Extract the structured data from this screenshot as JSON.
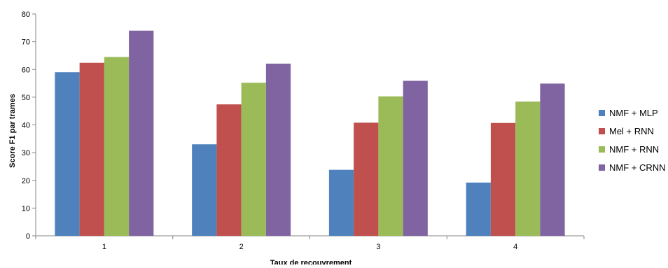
{
  "chart_data": {
    "type": "bar",
    "categories": [
      "1",
      "2",
      "3",
      "4"
    ],
    "series": [
      {
        "name": "NMF + MLP",
        "values": [
          59.0,
          33.0,
          23.8,
          19.2
        ],
        "color": "#4F81BD"
      },
      {
        "name": "Mel + RNN",
        "values": [
          62.4,
          47.4,
          40.8,
          40.7
        ],
        "color": "#C0504D"
      },
      {
        "name": "NMF + RNN",
        "values": [
          64.5,
          55.2,
          50.3,
          48.4
        ],
        "color": "#9BBB59"
      },
      {
        "name": "NMF + CRNN",
        "values": [
          74.0,
          62.1,
          55.9,
          54.9
        ],
        "color": "#8064A2"
      }
    ],
    "title": "",
    "xlabel": "Taux de recouvrement",
    "ylabel": "Score F1 par trames",
    "ylim": [
      0,
      80
    ],
    "yticks": [
      0,
      10,
      20,
      30,
      40,
      50,
      60,
      70,
      80
    ],
    "grid": false,
    "legend_position": "right"
  }
}
